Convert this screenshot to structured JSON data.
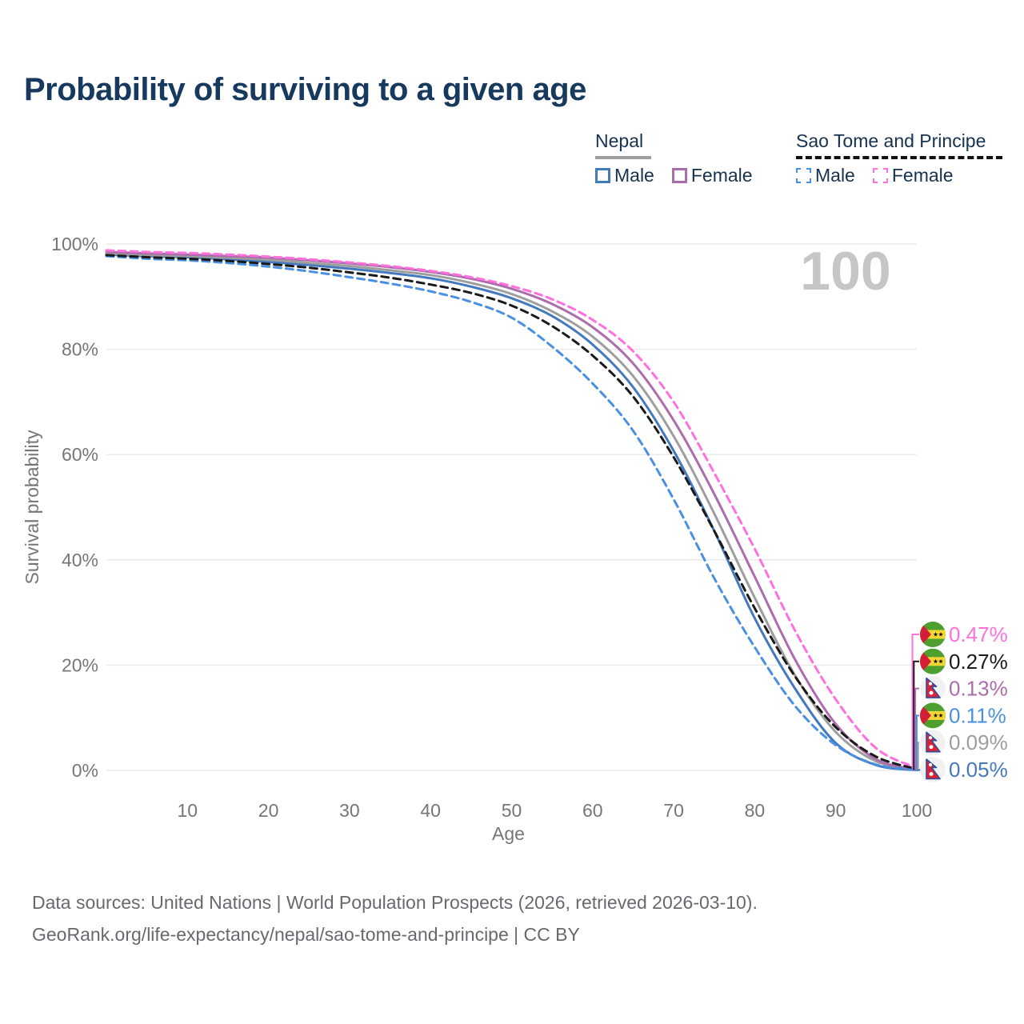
{
  "title": "Probability of surviving to a given age",
  "watermark": "100",
  "legend": {
    "groups": [
      {
        "label": "Nepal",
        "underline_style": "solid",
        "underline_color": "#9e9e9e",
        "items": [
          {
            "label": "Male",
            "color": "#4579be",
            "dashed": false
          },
          {
            "label": "Female",
            "color": "#ad6cab",
            "dashed": false
          }
        ]
      },
      {
        "label": "Sao Tome and Principe",
        "underline_style": "dashed",
        "underline_color": "#111111",
        "items": [
          {
            "label": "Male",
            "color": "#4a90e2",
            "dashed": true
          },
          {
            "label": "Female",
            "color": "#ff70dd",
            "dashed": true
          }
        ]
      }
    ]
  },
  "chart_data": {
    "type": "line",
    "title": "Probability of surviving to a given age",
    "xlabel": "Age",
    "ylabel": "Survival probability",
    "xlim": [
      0,
      100
    ],
    "ylim": [
      0,
      100
    ],
    "grid": "horizontal",
    "xticks": [
      10,
      20,
      30,
      40,
      50,
      60,
      70,
      80,
      90,
      100
    ],
    "ytick_labels": [
      "0%",
      "20%",
      "40%",
      "60%",
      "80%",
      "100%"
    ],
    "ytick_values": [
      0,
      20,
      40,
      60,
      80,
      100
    ],
    "ages": [
      0,
      5,
      10,
      15,
      20,
      25,
      30,
      35,
      40,
      45,
      50,
      55,
      60,
      65,
      70,
      75,
      80,
      85,
      90,
      95,
      100
    ],
    "series": [
      {
        "name": "Sao Tome and Principe Female",
        "flag": "stp",
        "color": "#ff70dd",
        "dashed": true,
        "end_label": "0.47%",
        "values": [
          98.8,
          98.5,
          98.3,
          98.0,
          97.6,
          97.1,
          96.5,
          95.8,
          94.9,
          93.7,
          92.0,
          89.5,
          85.6,
          79.6,
          70.0,
          56.5,
          42.1,
          26.5,
          13.5,
          4.2,
          0.47
        ]
      },
      {
        "name": "Sao Tome and Principe",
        "flag": "stp",
        "color": "#1a1a1a",
        "dashed": true,
        "end_label": "0.27%",
        "values": [
          97.9,
          97.5,
          97.2,
          96.8,
          96.2,
          95.5,
          94.6,
          93.6,
          92.3,
          90.7,
          88.3,
          84.4,
          78.8,
          71.0,
          59.5,
          45.5,
          30.8,
          17.8,
          8.2,
          2.6,
          0.27
        ]
      },
      {
        "name": "Nepal Female",
        "flag": "nepal",
        "color": "#ad6cab",
        "dashed": false,
        "end_label": "0.13%",
        "values": [
          98.5,
          98.2,
          98.0,
          97.7,
          97.4,
          96.9,
          96.3,
          95.6,
          94.7,
          93.4,
          91.5,
          88.6,
          84.2,
          77.3,
          66.5,
          52.5,
          36.8,
          21.0,
          8.8,
          2.1,
          0.13
        ]
      },
      {
        "name": "Sao Tome and Principe Male",
        "flag": "stp",
        "color": "#4a90e2",
        "dashed": true,
        "end_label": "0.11%",
        "values": [
          97.7,
          97.2,
          96.9,
          96.4,
          95.7,
          94.8,
          93.7,
          92.5,
          91.0,
          89.0,
          86.0,
          80.5,
          73.5,
          64.5,
          51.5,
          36.5,
          23.4,
          12.2,
          4.8,
          1.1,
          0.11
        ]
      },
      {
        "name": "Nepal",
        "flag": "nepal",
        "color": "#9e9e9e",
        "dashed": false,
        "end_label": "0.09%",
        "values": [
          98.2,
          97.9,
          97.7,
          97.4,
          97.0,
          96.4,
          95.8,
          95.0,
          94.1,
          92.6,
          90.5,
          87.2,
          82.4,
          74.9,
          63.5,
          48.8,
          32.8,
          18.0,
          7.3,
          1.7,
          0.09
        ]
      },
      {
        "name": "Nepal Male",
        "flag": "nepal",
        "color": "#4579be",
        "dashed": false,
        "end_label": "0.05%",
        "values": [
          98.0,
          97.7,
          97.5,
          97.1,
          96.6,
          96.0,
          95.3,
          94.5,
          93.5,
          91.9,
          89.7,
          86.3,
          80.9,
          72.8,
          60.7,
          45.5,
          28.9,
          15.5,
          5.2,
          1.0,
          0.05
        ]
      }
    ],
    "legend_position": "top-right"
  },
  "footer": {
    "line1": "Data sources: United Nations | World Population Prospects (2026, retrieved 2026-03-10).",
    "line2": "GeoRank.org/life-expectancy/nepal/sao-tome-and-principe | CC BY"
  }
}
